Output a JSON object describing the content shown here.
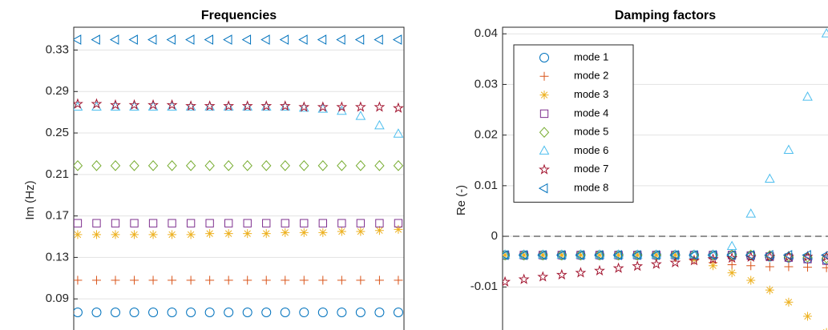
{
  "chart_data": [
    {
      "type": "scatter",
      "title": "Frequencies",
      "y_label": "Im (Hz)",
      "x": [
        1,
        2,
        3,
        4,
        5,
        6,
        7,
        8,
        9,
        10,
        11,
        12,
        13,
        14,
        15,
        16,
        17,
        18
      ],
      "xlim": [
        0.79,
        18.3
      ],
      "ylim": [
        0.06,
        0.352
      ],
      "yticks": [
        0.09,
        0.13,
        0.17,
        0.21,
        0.25,
        0.29,
        0.33
      ],
      "grid": true,
      "series": [
        {
          "color": "#0072BD",
          "marker": "circle",
          "values": [
            0.077,
            0.077,
            0.077,
            0.077,
            0.077,
            0.077,
            0.077,
            0.077,
            0.077,
            0.077,
            0.077,
            0.077,
            0.077,
            0.077,
            0.077,
            0.077,
            0.077,
            0.077
          ]
        },
        {
          "color": "#D95319",
          "marker": "plus",
          "values": [
            0.108,
            0.108,
            0.108,
            0.108,
            0.108,
            0.108,
            0.108,
            0.108,
            0.108,
            0.108,
            0.108,
            0.108,
            0.108,
            0.108,
            0.108,
            0.108,
            0.108,
            0.108
          ]
        },
        {
          "color": "#EDB120",
          "marker": "asterisk",
          "values": [
            0.152,
            0.152,
            0.152,
            0.152,
            0.152,
            0.152,
            0.152,
            0.153,
            0.153,
            0.153,
            0.153,
            0.154,
            0.154,
            0.154,
            0.155,
            0.155,
            0.156,
            0.157
          ]
        },
        {
          "color": "#7E2F8E",
          "marker": "square",
          "values": [
            0.163,
            0.163,
            0.163,
            0.163,
            0.163,
            0.163,
            0.163,
            0.163,
            0.163,
            0.163,
            0.163,
            0.163,
            0.163,
            0.163,
            0.163,
            0.163,
            0.163,
            0.163
          ]
        },
        {
          "color": "#77AC30",
          "marker": "diamond",
          "values": [
            0.2185,
            0.2185,
            0.2185,
            0.2185,
            0.2185,
            0.2185,
            0.2185,
            0.2185,
            0.2185,
            0.2185,
            0.2185,
            0.2185,
            0.2185,
            0.2185,
            0.2185,
            0.2185,
            0.2185,
            0.2185
          ]
        },
        {
          "color": "#4DBEEE",
          "marker": "triangle-up",
          "values": [
            0.275,
            0.275,
            0.275,
            0.275,
            0.275,
            0.275,
            0.275,
            0.275,
            0.275,
            0.275,
            0.275,
            0.275,
            0.274,
            0.273,
            0.271,
            0.266,
            0.257,
            0.249
          ]
        },
        {
          "color": "#A2142F",
          "marker": "pentagram",
          "values": [
            0.278,
            0.278,
            0.277,
            0.277,
            0.277,
            0.277,
            0.276,
            0.276,
            0.276,
            0.276,
            0.276,
            0.276,
            0.275,
            0.275,
            0.275,
            0.275,
            0.275,
            0.274
          ]
        },
        {
          "color": "#0072BD",
          "marker": "triangle-left",
          "values": [
            0.34,
            0.34,
            0.34,
            0.34,
            0.34,
            0.34,
            0.34,
            0.34,
            0.34,
            0.34,
            0.34,
            0.34,
            0.34,
            0.34,
            0.34,
            0.34,
            0.34,
            0.34
          ]
        }
      ]
    },
    {
      "type": "scatter",
      "title": "Damping factors",
      "y_label": "Re (-)",
      "x": [
        1,
        2,
        3,
        4,
        5,
        6,
        7,
        8,
        9,
        10,
        11,
        12,
        13,
        14,
        15,
        16,
        17,
        18
      ],
      "xlim": [
        0.87,
        18.08
      ],
      "ylim": [
        -0.0185,
        0.0413
      ],
      "yticks": [
        -0.01,
        0,
        0.01,
        0.02,
        0.03,
        0.04
      ],
      "grid": true,
      "hline": 0,
      "legend": "upper left",
      "series": [
        {
          "name": "mode 1",
          "color": "#0072BD",
          "marker": "circle",
          "values": [
            -0.0037,
            -0.0037,
            -0.0037,
            -0.0037,
            -0.0037,
            -0.0037,
            -0.0037,
            -0.0037,
            -0.0037,
            -0.0037,
            -0.0037,
            -0.0037,
            -0.0037,
            -0.0038,
            -0.004,
            -0.0042,
            -0.0044,
            -0.0046
          ]
        },
        {
          "name": "mode 2",
          "color": "#D95319",
          "marker": "plus",
          "values": [
            -0.0037,
            -0.0037,
            -0.0037,
            -0.0037,
            -0.0037,
            -0.0037,
            -0.0037,
            -0.0037,
            -0.0037,
            -0.0042,
            -0.0047,
            -0.0052,
            -0.0056,
            -0.0058,
            -0.006,
            -0.006,
            -0.0061,
            -0.0062
          ]
        },
        {
          "name": "mode 3",
          "color": "#EDB120",
          "marker": "asterisk",
          "values": [
            -0.0037,
            -0.0037,
            -0.0037,
            -0.0037,
            -0.0037,
            -0.0037,
            -0.0037,
            -0.0037,
            -0.0037,
            -0.0037,
            -0.0045,
            -0.0058,
            -0.0072,
            -0.0087,
            -0.0106,
            -0.013,
            -0.0158,
            -0.019
          ]
        },
        {
          "name": "mode 4",
          "color": "#7E2F8E",
          "marker": "square",
          "values": [
            -0.0037,
            -0.0037,
            -0.0037,
            -0.0037,
            -0.0037,
            -0.0037,
            -0.0037,
            -0.0037,
            -0.0037,
            -0.0037,
            -0.0037,
            -0.0037,
            -0.0037,
            -0.0038,
            -0.004,
            -0.0042,
            -0.0045,
            -0.0048
          ]
        },
        {
          "name": "mode 5",
          "color": "#77AC30",
          "marker": "diamond",
          "values": [
            -0.0037,
            -0.0037,
            -0.0037,
            -0.0037,
            -0.0037,
            -0.0037,
            -0.0037,
            -0.0037,
            -0.0037,
            -0.0037,
            -0.0037,
            -0.0037,
            -0.0037,
            -0.0037,
            -0.0038,
            -0.004,
            -0.0041,
            -0.0043
          ]
        },
        {
          "name": "mode 6",
          "color": "#4DBEEE",
          "marker": "triangle-up",
          "values": [
            -0.0037,
            -0.0037,
            -0.0037,
            -0.0037,
            -0.0037,
            -0.0037,
            -0.0037,
            -0.0037,
            -0.0037,
            -0.0037,
            -0.0037,
            -0.0037,
            -0.002,
            0.0044,
            0.0113,
            0.017,
            0.0275,
            0.04
          ]
        },
        {
          "name": "mode 7",
          "color": "#A2142F",
          "marker": "pentagram",
          "values": [
            -0.009,
            -0.0085,
            -0.008,
            -0.0076,
            -0.0072,
            -0.0068,
            -0.0063,
            -0.0059,
            -0.0055,
            -0.0052,
            -0.0048,
            -0.0045,
            -0.0043,
            -0.0041,
            -0.004,
            -0.004,
            -0.004,
            -0.004
          ]
        },
        {
          "name": "mode 8",
          "color": "#0072BD",
          "marker": "triangle-left",
          "values": [
            -0.0037,
            -0.0037,
            -0.0037,
            -0.0037,
            -0.0037,
            -0.0037,
            -0.0037,
            -0.0037,
            -0.0037,
            -0.0037,
            -0.0037,
            -0.0037,
            -0.0037,
            -0.0037,
            -0.0037,
            -0.0037,
            -0.0037,
            -0.0037
          ]
        }
      ]
    }
  ]
}
